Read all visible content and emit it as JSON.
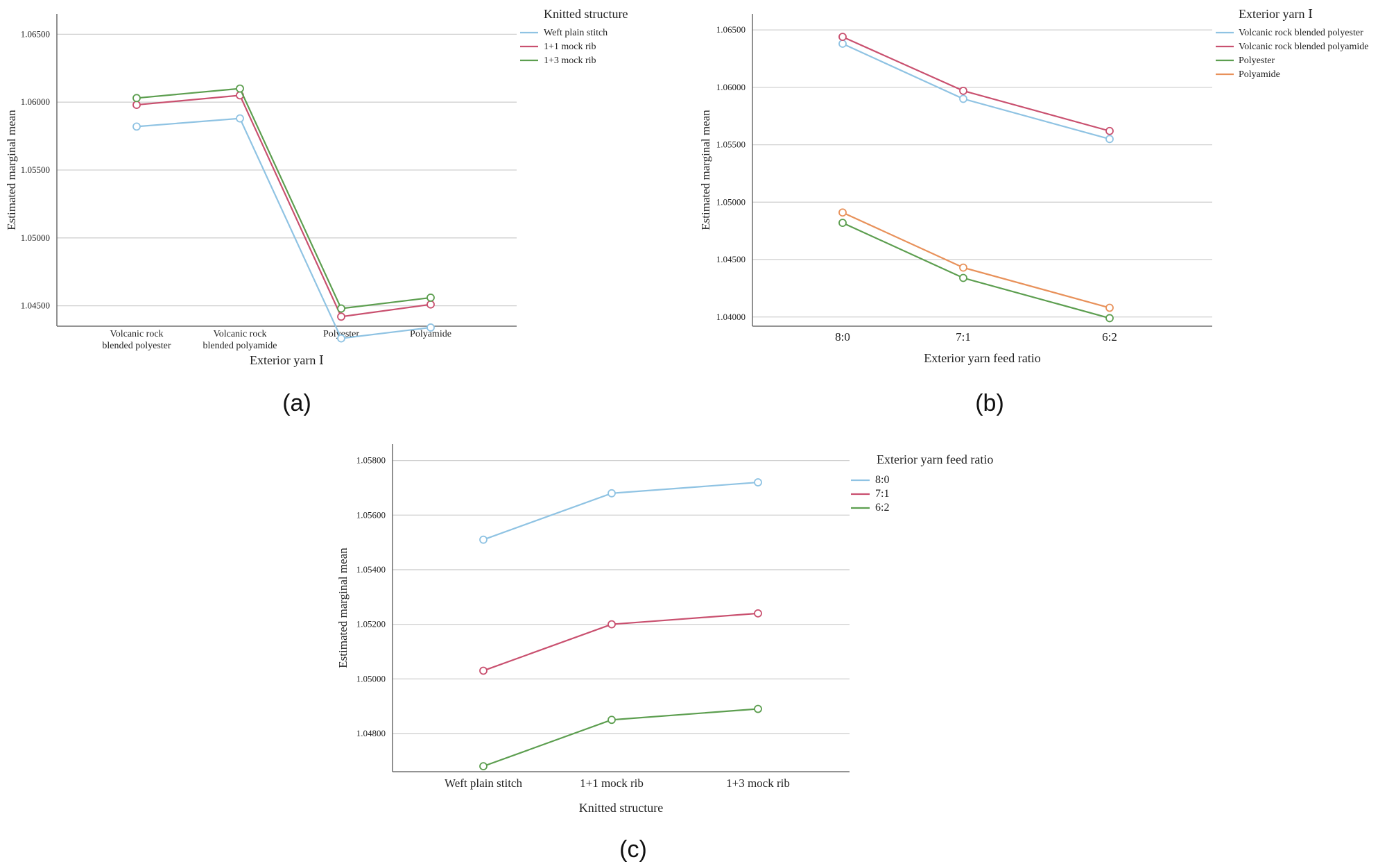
{
  "chart_data": [
    {
      "type": "line",
      "panel_label": "(a)",
      "ylabel": "Estimated marginal mean",
      "xlabel": "Exterior yarn Ⅰ",
      "categories": [
        [
          "Volcanic rock",
          "blended polyester"
        ],
        [
          "Volcanic rock",
          "blended polyamide"
        ],
        [
          "Polyester"
        ],
        [
          "Polyamide"
        ]
      ],
      "ylim": [
        1.0435,
        1.0665
      ],
      "yticks": [
        "1.04500",
        "1.05000",
        "1.05500",
        "1.06000",
        "1.06500"
      ],
      "ytick_values": [
        1.045,
        1.05,
        1.055,
        1.06,
        1.065
      ],
      "legend_title": "Knitted structure",
      "series": [
        {
          "name": "Weft plain stitch",
          "color": "#8fc3e3",
          "values": [
            1.0582,
            1.0588,
            1.0426,
            1.0434
          ]
        },
        {
          "name": "1+1 mock rib",
          "color": "#c9506f",
          "values": [
            1.0598,
            1.0605,
            1.0442,
            1.0451
          ]
        },
        {
          "name": "1+3 mock rib",
          "color": "#5c9e4f",
          "values": [
            1.0603,
            1.061,
            1.0448,
            1.0456
          ]
        }
      ]
    },
    {
      "type": "line",
      "panel_label": "(b)",
      "ylabel": "Estimated marginal mean",
      "xlabel": "Exterior yarn feed ratio",
      "categories": [
        [
          "8:0"
        ],
        [
          "7:1"
        ],
        [
          "6:2"
        ]
      ],
      "ylim": [
        1.0392,
        1.0664
      ],
      "yticks": [
        "1.04000",
        "1.04500",
        "1.05000",
        "1.05500",
        "1.06000",
        "1.06500"
      ],
      "ytick_values": [
        1.04,
        1.045,
        1.05,
        1.055,
        1.06,
        1.065
      ],
      "legend_title": "Exterior yarn Ⅰ",
      "series": [
        {
          "name": "Volcanic rock blended polyester",
          "color": "#8fc3e3",
          "values": [
            1.0638,
            1.059,
            1.0555
          ]
        },
        {
          "name": "Volcanic rock blended polyamide",
          "color": "#c9506f",
          "values": [
            1.0644,
            1.0597,
            1.0562
          ]
        },
        {
          "name": "Polyester",
          "color": "#5c9e4f",
          "values": [
            1.0482,
            1.0434,
            1.0399
          ]
        },
        {
          "name": "Polyamide",
          "color": "#e8915a",
          "values": [
            1.0491,
            1.0443,
            1.0408
          ]
        }
      ]
    },
    {
      "type": "line",
      "panel_label": "(c)",
      "ylabel": "Estimated marginal mean",
      "xlabel": "Knitted structure",
      "categories": [
        [
          "Weft plain stitch"
        ],
        [
          "1+1 mock rib"
        ],
        [
          "1+3 mock rib"
        ]
      ],
      "ylim": [
        1.0466,
        1.0586
      ],
      "yticks": [
        "1.04800",
        "1.05000",
        "1.05200",
        "1.05400",
        "1.05600",
        "1.05800"
      ],
      "ytick_values": [
        1.048,
        1.05,
        1.052,
        1.054,
        1.056,
        1.058
      ],
      "legend_title": "Exterior yarn feed ratio",
      "series": [
        {
          "name": "8:0",
          "color": "#8fc3e3",
          "values": [
            1.0551,
            1.0568,
            1.0572
          ]
        },
        {
          "name": "7:1",
          "color": "#c9506f",
          "values": [
            1.0503,
            1.052,
            1.0524
          ]
        },
        {
          "name": "6:2",
          "color": "#5c9e4f",
          "values": [
            1.0468,
            1.0485,
            1.0489
          ]
        }
      ]
    }
  ]
}
